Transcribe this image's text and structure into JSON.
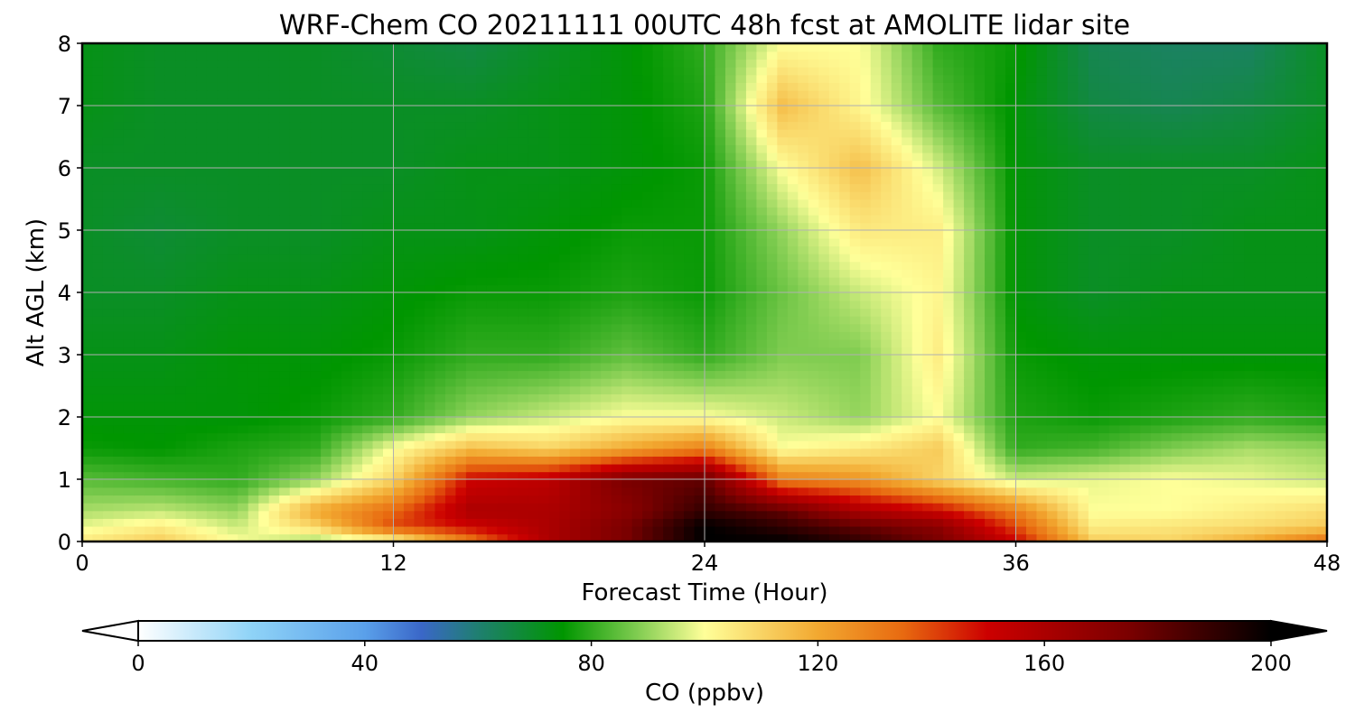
{
  "chart_data": {
    "type": "heatmap",
    "title": "WRF-Chem CO  20211111 00UTC 48h fcst at AMOLITE lidar site",
    "xlabel": "Forecast Time (Hour)",
    "ylabel": "Alt AGL (km)",
    "xlim": [
      0,
      48
    ],
    "ylim": [
      0,
      8
    ],
    "x_ticks": [
      "0",
      "12",
      "24",
      "36",
      "48"
    ],
    "y_ticks": [
      "0",
      "1",
      "2",
      "3",
      "4",
      "5",
      "6",
      "7",
      "8"
    ],
    "grid": true,
    "colorbar": {
      "label": "CO  (ppbv)",
      "range": [
        0,
        200
      ],
      "ticks": [
        "0",
        "40",
        "80",
        "120",
        "160",
        "200"
      ],
      "extend": "both",
      "orientation": "horizontal",
      "color_stops": [
        {
          "value": 0,
          "color": "#ffffff"
        },
        {
          "value": 20,
          "color": "#8fd3f7"
        },
        {
          "value": 40,
          "color": "#5aa0ea"
        },
        {
          "value": 50,
          "color": "#3a67c8"
        },
        {
          "value": 60,
          "color": "#1f7f70"
        },
        {
          "value": 75,
          "color": "#009600"
        },
        {
          "value": 88,
          "color": "#7fcc50"
        },
        {
          "value": 100,
          "color": "#ffff99"
        },
        {
          "value": 120,
          "color": "#f2a830"
        },
        {
          "value": 135,
          "color": "#e86a10"
        },
        {
          "value": 150,
          "color": "#cc0000"
        },
        {
          "value": 175,
          "color": "#7a0000"
        },
        {
          "value": 200,
          "color": "#000000"
        }
      ]
    },
    "field_grid": {
      "x": [
        0,
        3,
        6,
        9,
        12,
        15,
        18,
        21,
        24,
        27,
        30,
        33,
        36,
        39,
        42,
        45,
        48
      ],
      "y": [
        0,
        0.25,
        0.5,
        1,
        1.5,
        2,
        3,
        4,
        5,
        6,
        7,
        8
      ],
      "values": [
        [
          105,
          112,
          100,
          90,
          98,
          130,
          160,
          175,
          200,
          200,
          190,
          175,
          150,
          112,
          110,
          120,
          135
        ],
        [
          98,
          104,
          95,
          110,
          140,
          150,
          160,
          175,
          200,
          190,
          180,
          170,
          140,
          104,
          106,
          108,
          112
        ],
        [
          92,
          94,
          90,
          120,
          135,
          160,
          160,
          170,
          190,
          180,
          160,
          150,
          130,
          100,
          100,
          104,
          108
        ],
        [
          84,
          82,
          80,
          90,
          110,
          150,
          155,
          175,
          180,
          130,
          125,
          110,
          95,
          98,
          100,
          98,
          95
        ],
        [
          76,
          75,
          78,
          80,
          100,
          115,
          110,
          120,
          130,
          100,
          105,
          112,
          80,
          82,
          88,
          92,
          90
        ],
        [
          74,
          74,
          74,
          76,
          80,
          90,
          95,
          100,
          100,
          95,
          90,
          100,
          78,
          76,
          78,
          80,
          78
        ],
        [
          72,
          72,
          74,
          74,
          76,
          80,
          80,
          85,
          80,
          88,
          88,
          104,
          76,
          74,
          74,
          74,
          74
        ],
        [
          70,
          70,
          72,
          72,
          74,
          76,
          76,
          78,
          76,
          86,
          95,
          102,
          74,
          70,
          72,
          72,
          72
        ],
        [
          70,
          68,
          70,
          70,
          72,
          72,
          74,
          76,
          76,
          90,
          105,
          104,
          74,
          70,
          70,
          72,
          72
        ],
        [
          70,
          70,
          70,
          70,
          70,
          72,
          72,
          74,
          76,
          100,
          115,
          96,
          74,
          70,
          70,
          70,
          72
        ],
        [
          72,
          70,
          70,
          70,
          70,
          70,
          72,
          74,
          78,
          115,
          102,
          84,
          74,
          66,
          64,
          66,
          70
        ],
        [
          72,
          70,
          70,
          70,
          68,
          66,
          70,
          74,
          80,
          100,
          100,
          80,
          76,
          64,
          62,
          62,
          70
        ]
      ]
    }
  }
}
